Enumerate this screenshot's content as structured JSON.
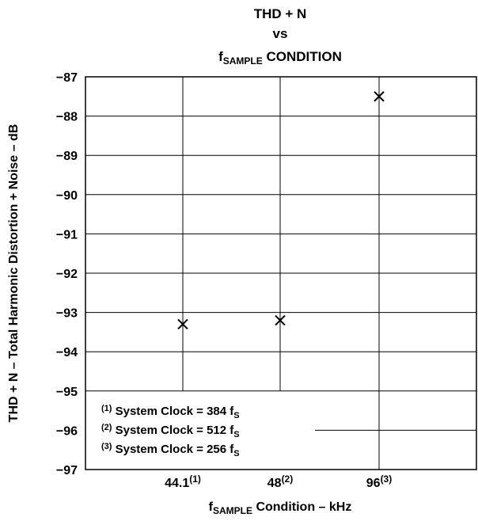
{
  "chart_data": {
    "type": "scatter",
    "title_lines": [
      "THD + N",
      "vs"
    ],
    "title_sub": {
      "base": "f",
      "sub": "SAMPLE",
      "rest": " CONDITION"
    },
    "xlabel": {
      "base": "f",
      "sub": "SAMPLE",
      "rest": " Condition – kHz"
    },
    "ylabel": "THD + N – Total Harmonic Distortion + Noise – dB",
    "categories": [
      {
        "label": "44.1",
        "sup": "(1)"
      },
      {
        "label": "48",
        "sup": "(2)"
      },
      {
        "label": "96",
        "sup": "(3)"
      }
    ],
    "values": [
      -93.3,
      -93.2,
      -87.5
    ],
    "ylim": [
      -97,
      -87
    ],
    "yticks": [
      "−87",
      "−88",
      "−89",
      "−90",
      "−91",
      "−92",
      "−93",
      "−94",
      "−95",
      "−96",
      "−97"
    ],
    "grid": true,
    "notes": [
      {
        "sup": "(1)",
        "text": " System Clock = 384 f",
        "sub": "S"
      },
      {
        "sup": "(2)",
        "text": " System Clock = 512 f",
        "sub": "S"
      },
      {
        "sup": "(3)",
        "text": " System Clock = 256 f",
        "sub": "S"
      }
    ]
  }
}
